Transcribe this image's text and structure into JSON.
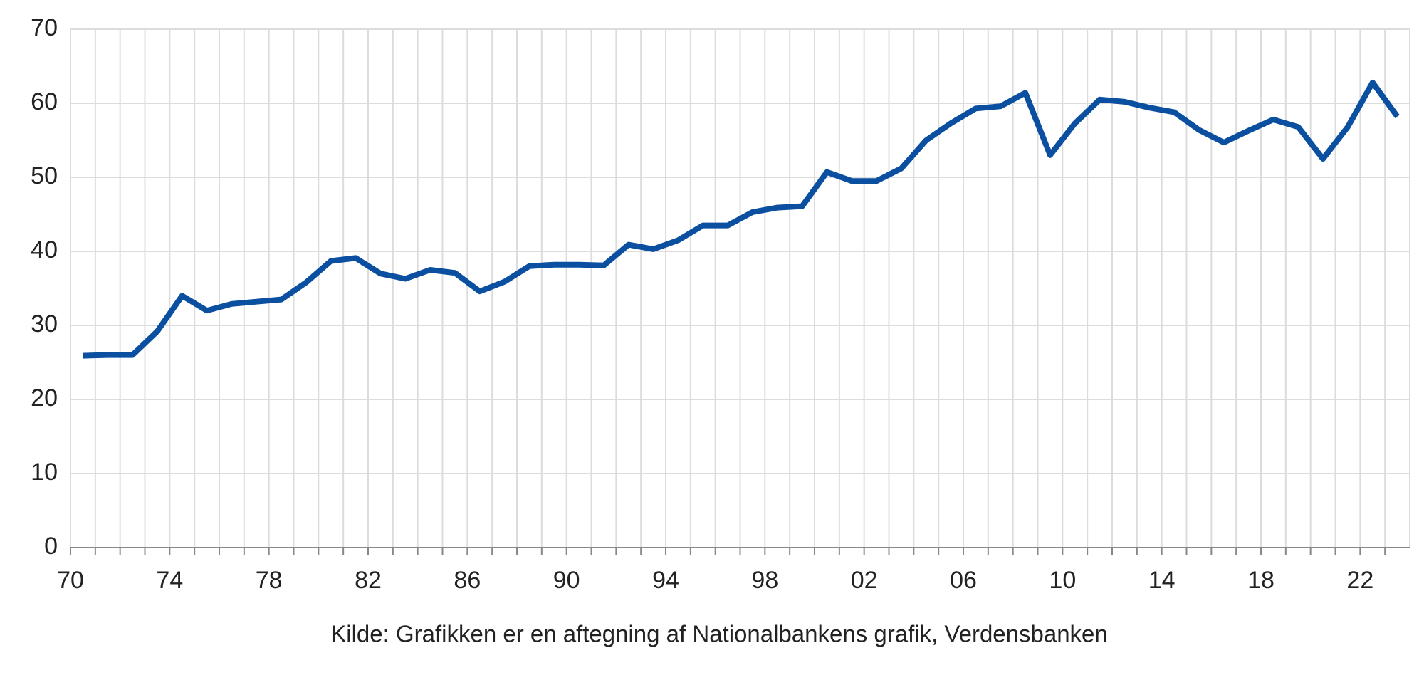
{
  "chart_data": {
    "type": "line",
    "categories": [
      "70",
      null,
      null,
      null,
      "74",
      null,
      null,
      null,
      "78",
      null,
      null,
      null,
      "82",
      null,
      null,
      null,
      "86",
      null,
      null,
      null,
      "90",
      null,
      null,
      null,
      "94",
      null,
      null,
      null,
      "98",
      null,
      null,
      null,
      "02",
      null,
      null,
      null,
      "06",
      null,
      null,
      null,
      "10",
      null,
      null,
      null,
      "14",
      null,
      null,
      null,
      "18",
      null,
      null,
      null,
      "22",
      null
    ],
    "values": [
      25.9,
      26,
      26,
      29.2,
      34,
      32,
      32.9,
      33.2,
      33.5,
      35.8,
      38.7,
      39.1,
      37,
      36.3,
      37.5,
      37.1,
      34.6,
      35.9,
      38,
      38.2,
      38.2,
      38.1,
      40.9,
      40.3,
      41.5,
      43.5,
      43.5,
      45.3,
      45.9,
      46.1,
      50.7,
      49.5,
      49.5,
      51.2,
      55,
      57.3,
      59.3,
      59.6,
      61.4,
      53,
      57.3,
      60.5,
      60.2,
      59.4,
      58.8,
      56.4,
      54.7,
      56.3,
      57.8,
      56.8,
      52.5,
      56.8,
      62.8,
      58.2
    ],
    "color": "#0a4fa0",
    "ylim": [
      0,
      70
    ],
    "yticks": [
      0,
      10,
      20,
      30,
      40,
      50,
      60,
      70
    ],
    "grid": true,
    "source": "Kilde: Grafikken er en aftegning af Nationalbankens grafik, Verdensbanken"
  }
}
